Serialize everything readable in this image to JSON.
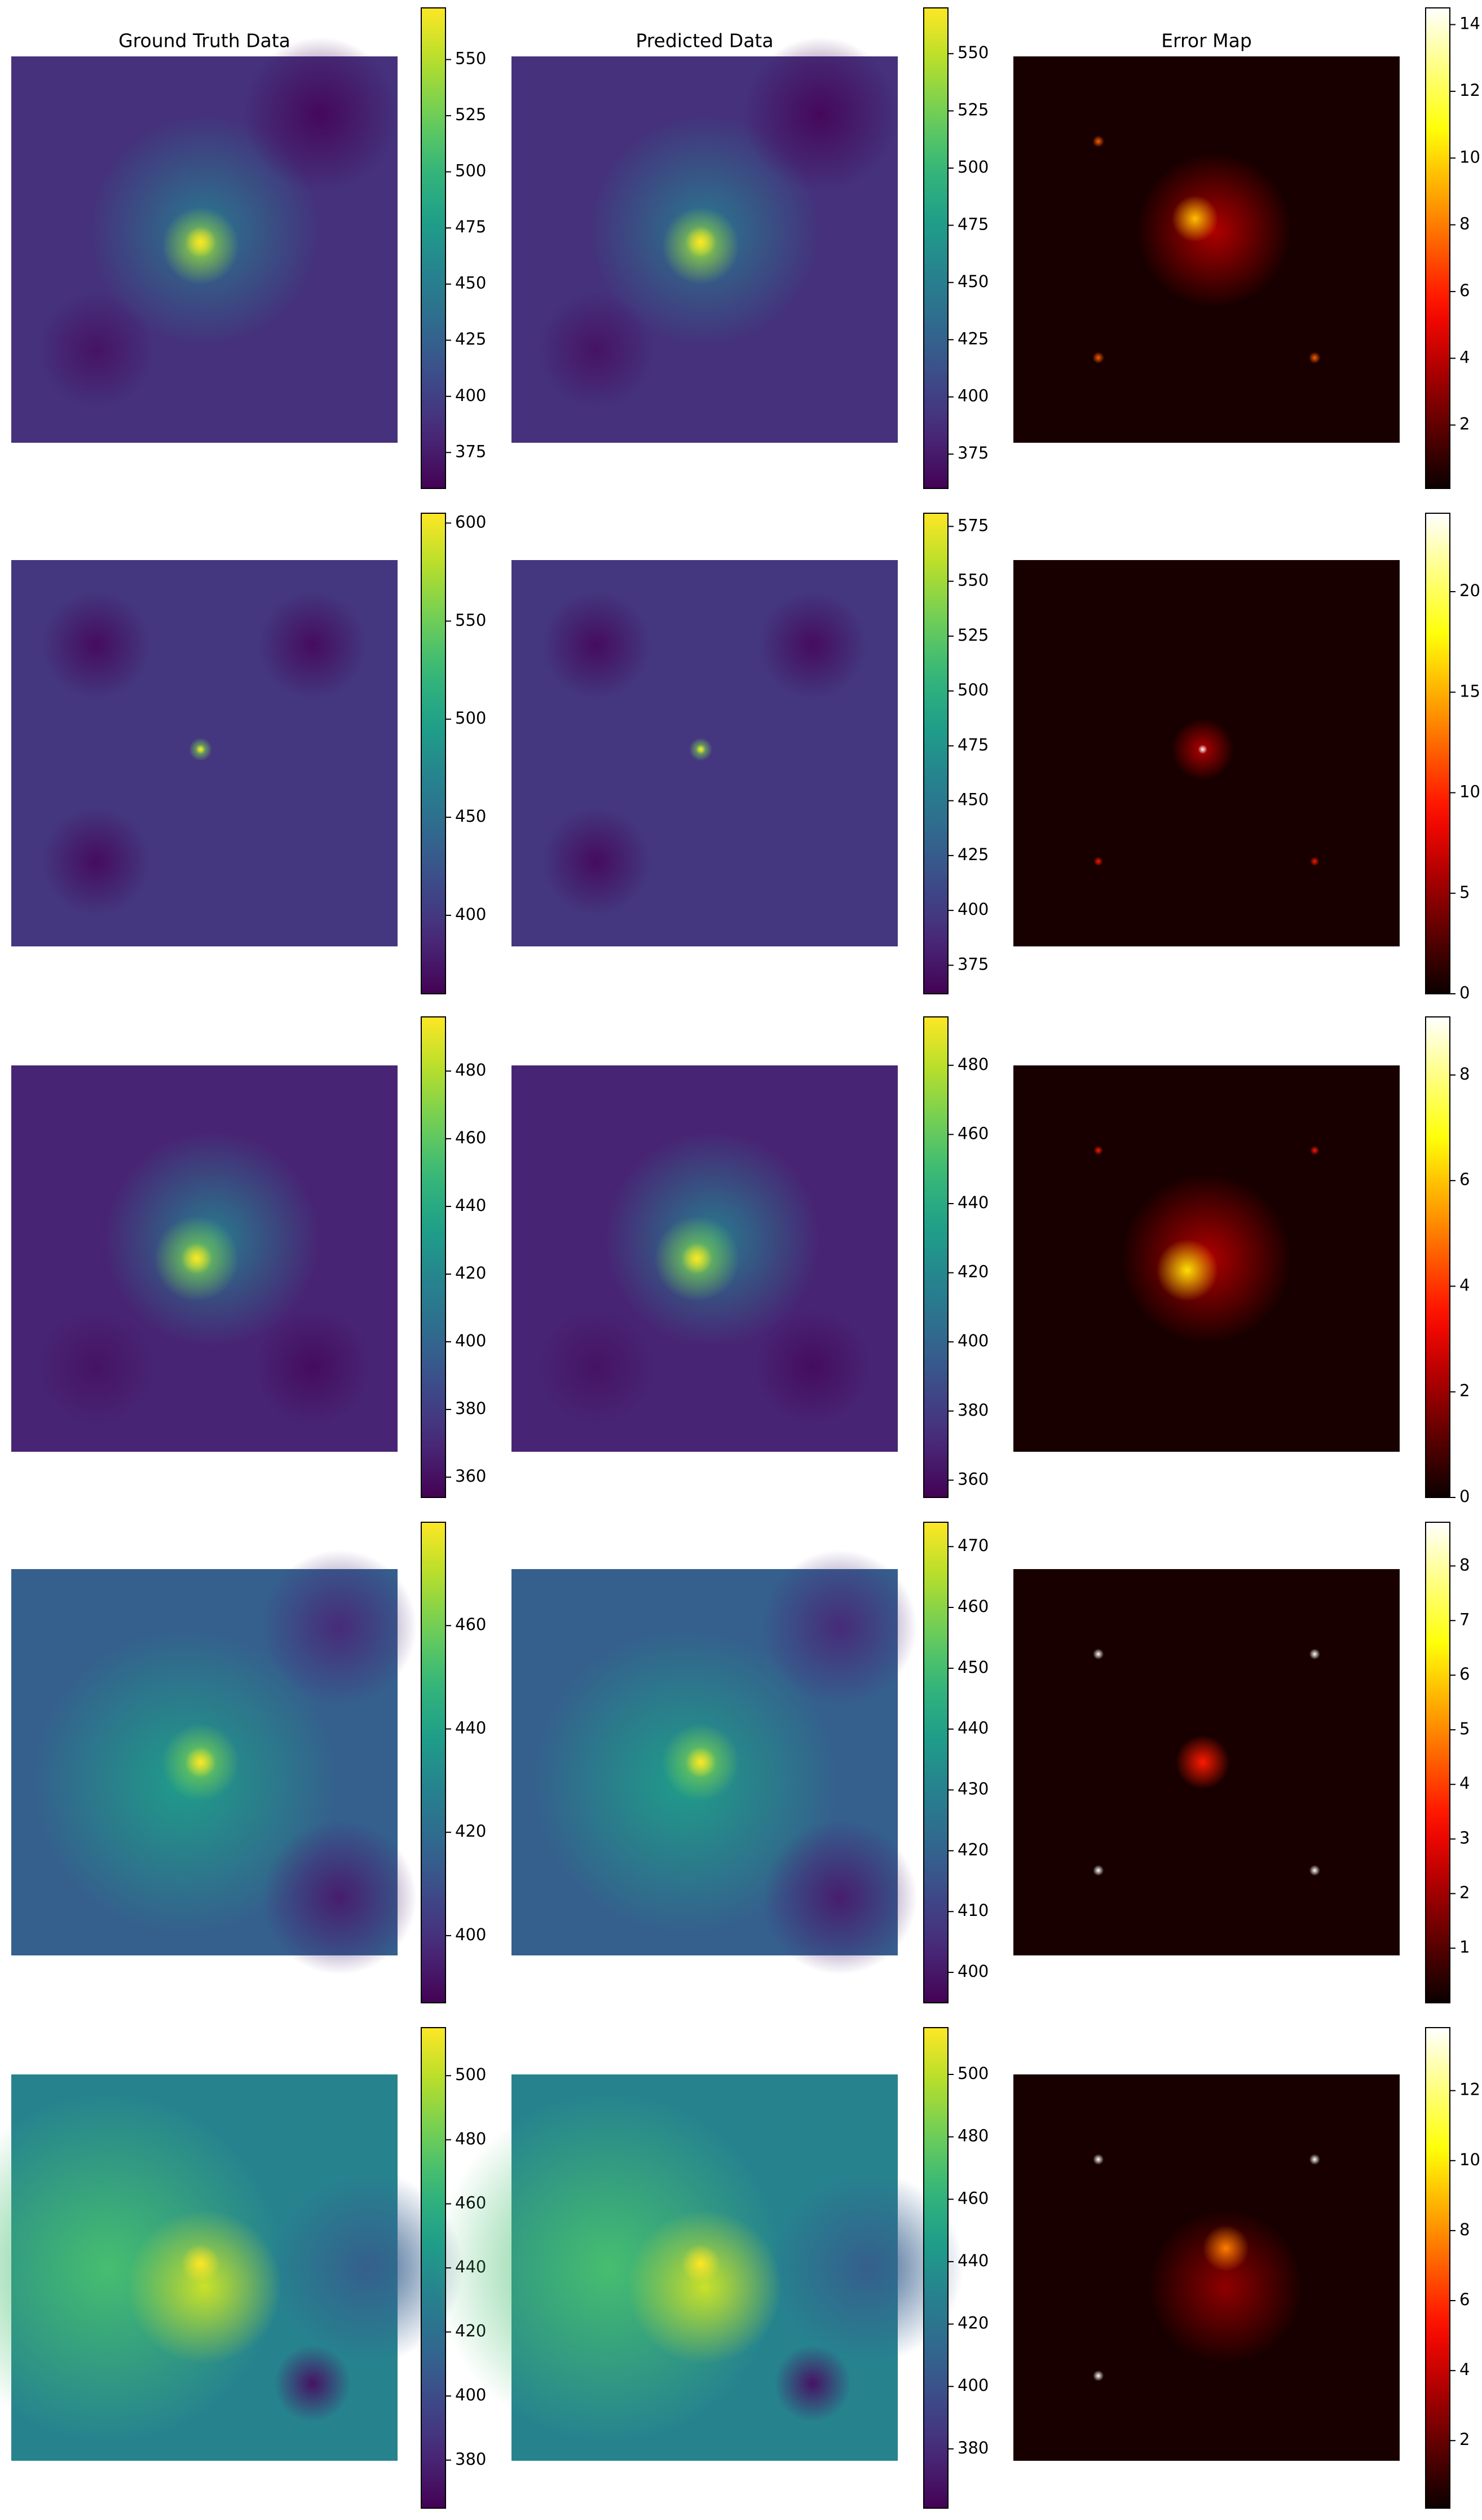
{
  "chart_data": [
    {
      "type": "heatmap",
      "title": "Ground Truth Data",
      "colormap": "viridis",
      "clim": [
        359,
        573
      ],
      "cticks": [
        375,
        400,
        425,
        450,
        475,
        500,
        525,
        550
      ]
    },
    {
      "type": "heatmap",
      "title": "Predicted Data",
      "colormap": "viridis",
      "clim": [
        360,
        570
      ],
      "cticks": [
        375,
        400,
        425,
        450,
        475,
        500,
        525,
        550
      ]
    },
    {
      "type": "heatmap",
      "title": "Error Map",
      "colormap": "hot",
      "clim": [
        0.1,
        14.5
      ],
      "cticks": [
        2,
        4,
        6,
        8,
        10,
        12,
        14
      ]
    },
    {
      "type": "heatmap",
      "colormap": "viridis",
      "clim": [
        360,
        605
      ],
      "cticks": [
        400,
        450,
        500,
        550,
        600
      ]
    },
    {
      "type": "heatmap",
      "colormap": "viridis",
      "clim": [
        362,
        581
      ],
      "cticks": [
        375,
        400,
        425,
        450,
        475,
        500,
        525,
        550,
        575
      ]
    },
    {
      "type": "heatmap",
      "colormap": "hot",
      "clim": [
        0,
        23.9
      ],
      "cticks": [
        0,
        5,
        10,
        15,
        20
      ]
    },
    {
      "type": "heatmap",
      "colormap": "viridis",
      "clim": [
        354,
        496
      ],
      "cticks": [
        360,
        380,
        400,
        420,
        440,
        460,
        480
      ]
    },
    {
      "type": "heatmap",
      "colormap": "viridis",
      "clim": [
        355,
        494
      ],
      "cticks": [
        360,
        380,
        400,
        420,
        440,
        460,
        480
      ]
    },
    {
      "type": "heatmap",
      "colormap": "hot",
      "clim": [
        0,
        9.1
      ],
      "cticks": [
        0,
        2,
        4,
        6,
        8
      ]
    },
    {
      "type": "heatmap",
      "colormap": "viridis",
      "clim": [
        387,
        480
      ],
      "cticks": [
        400,
        420,
        440,
        460
      ]
    },
    {
      "type": "heatmap",
      "colormap": "viridis",
      "clim": [
        395,
        474
      ],
      "cticks": [
        400,
        410,
        420,
        430,
        440,
        450,
        460,
        470
      ]
    },
    {
      "type": "heatmap",
      "colormap": "hot",
      "clim": [
        0,
        8.8
      ],
      "cticks": [
        1,
        2,
        3,
        4,
        5,
        6,
        7,
        8
      ]
    },
    {
      "type": "heatmap",
      "colormap": "viridis",
      "clim": [
        365,
        515
      ],
      "cticks": [
        380,
        400,
        420,
        440,
        460,
        480,
        500
      ]
    },
    {
      "type": "heatmap",
      "colormap": "viridis",
      "clim": [
        361,
        515
      ],
      "cticks": [
        380,
        400,
        420,
        440,
        460,
        480,
        500
      ]
    },
    {
      "type": "heatmap",
      "colormap": "hot",
      "clim": [
        0.07,
        13.8
      ],
      "cticks": [
        2,
        4,
        6,
        8,
        10,
        12
      ]
    }
  ]
}
